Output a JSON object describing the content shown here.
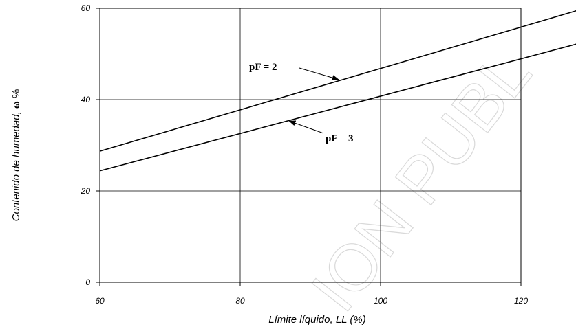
{
  "chart_data": {
    "type": "line",
    "xlabel": "Límite líquido, LL (%)",
    "ylabel_text": "Contenido de humedad,",
    "ylabel_symbol": "ω",
    "ylabel_unit": "%",
    "xlim": [
      60,
      120
    ],
    "ylim": [
      0,
      60
    ],
    "x_ticks": [
      "60",
      "80",
      "100",
      "120"
    ],
    "y_ticks": [
      "0",
      "20",
      "40",
      "60"
    ],
    "grid": true,
    "series": [
      {
        "name": "pF = 2",
        "x": [
          60,
          128
        ],
        "y": [
          28.7,
          59.5
        ]
      },
      {
        "name": "pF = 3",
        "x": [
          60,
          128
        ],
        "y": [
          24.4,
          52.2
        ]
      }
    ],
    "annotations": [
      {
        "text": "pF = 2",
        "target": [
          94,
          44.4
        ]
      },
      {
        "text": "pF = 3",
        "target": [
          87,
          35.3
        ]
      }
    ]
  },
  "watermark": "ION PUBL"
}
